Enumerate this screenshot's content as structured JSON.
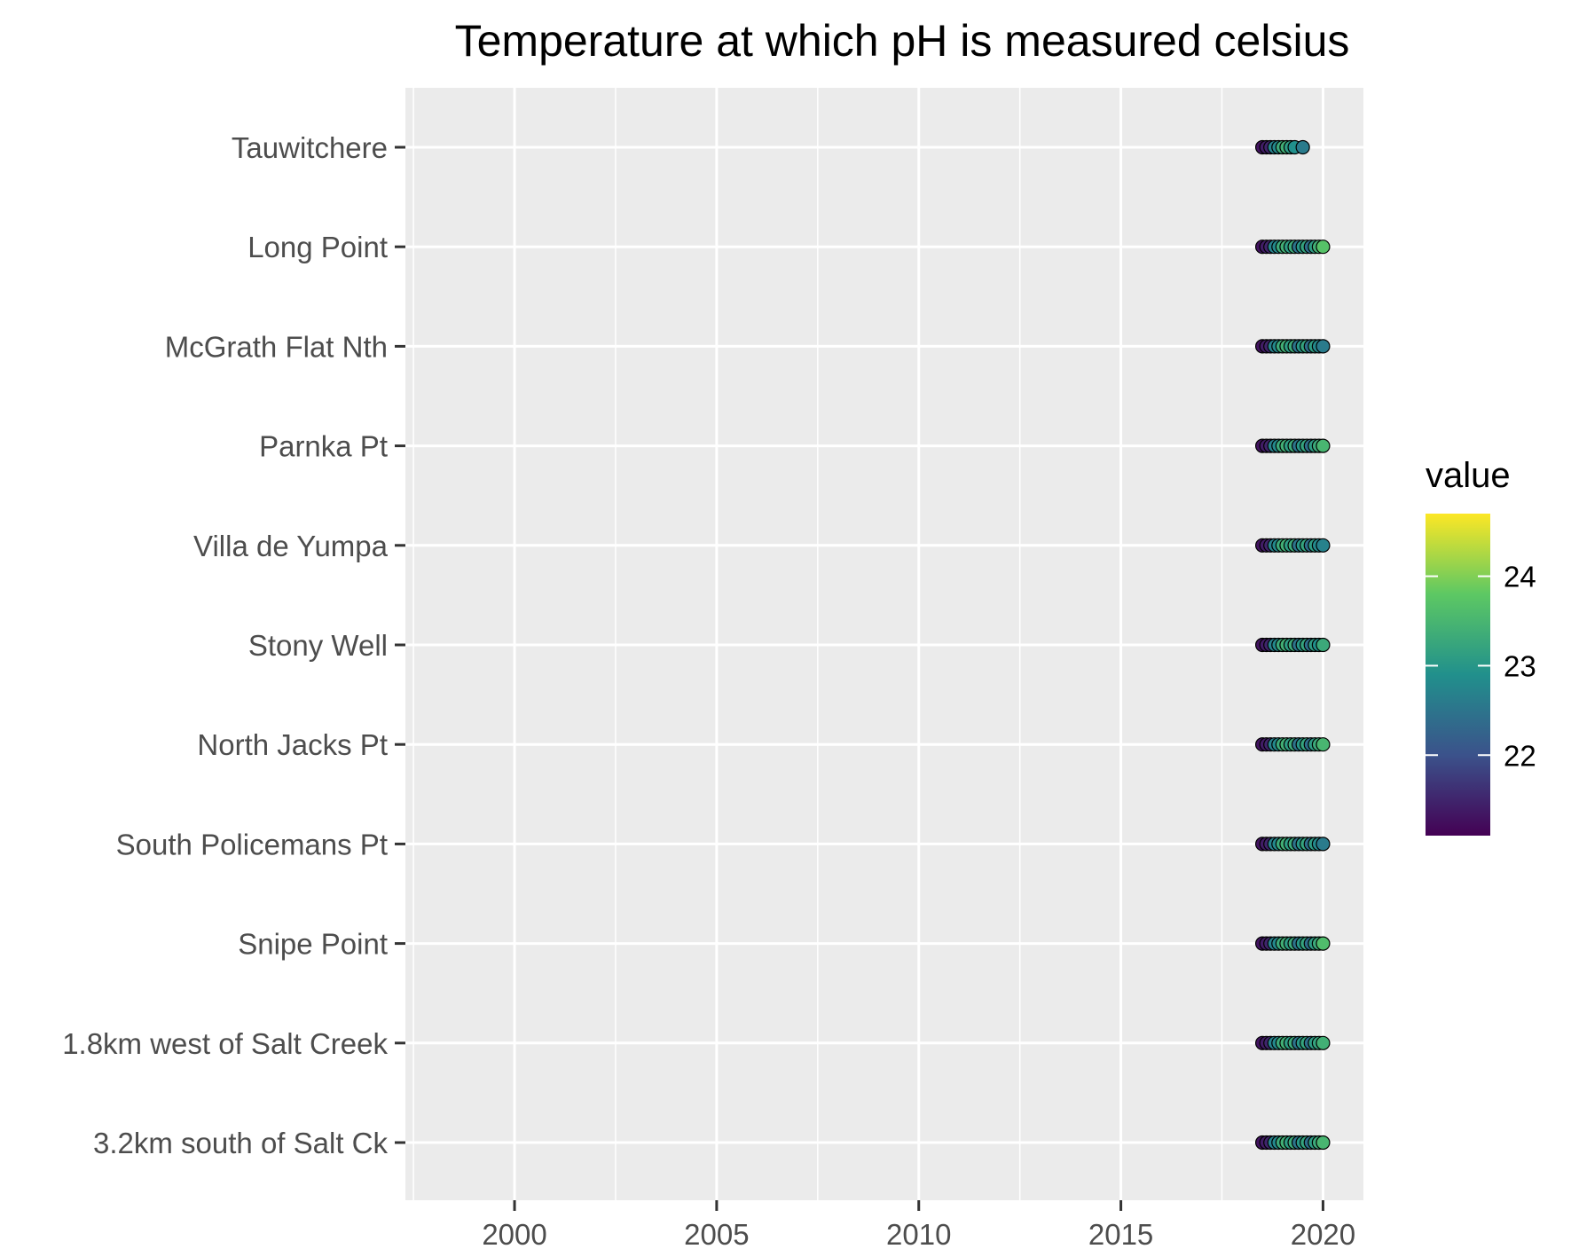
{
  "chart_data": {
    "type": "scatter",
    "title": "Temperature at which pH is measured celsius",
    "xlabel": "",
    "ylabel": "",
    "xlim": [
      1997.3,
      2021.0
    ],
    "x_ticks": [
      2000,
      2005,
      2010,
      2015,
      2020
    ],
    "x_tick_labels": [
      "2000",
      "2005",
      "2010",
      "2015",
      "2020"
    ],
    "categories": [
      "Tauwitchere",
      "Long Point",
      "McGrath Flat Nth",
      "Parnka Pt",
      "Villa de Yumpa",
      "Stony Well",
      "North Jacks Pt",
      "South Policemans Pt",
      "Snipe Point",
      "1.8km west of Salt Creek",
      "3.2km south of Salt Ck"
    ],
    "series": [
      {
        "category": "Tauwitchere",
        "x": [
          2018.5,
          2018.6,
          2018.7,
          2018.8,
          2018.9,
          2019.0,
          2019.1,
          2019.2,
          2019.3,
          2019.5
        ],
        "value": [
          21.3,
          21.4,
          21.5,
          22.7,
          22.8,
          23.3,
          23.4,
          23.1,
          22.9,
          22.6
        ]
      },
      {
        "category": "Long Point",
        "x": [
          2018.5,
          2018.6,
          2018.7,
          2018.8,
          2018.9,
          2019.0,
          2019.1,
          2019.2,
          2019.3,
          2019.4,
          2019.5,
          2019.6,
          2019.7,
          2019.8,
          2019.9,
          2020.0
        ],
        "value": [
          21.3,
          21.4,
          21.5,
          22.7,
          22.8,
          23.3,
          23.4,
          23.1,
          23.3,
          22.5,
          23.0,
          23.2,
          22.4,
          23.1,
          23.4,
          23.7
        ]
      },
      {
        "category": "McGrath Flat Nth",
        "x": [
          2018.5,
          2018.6,
          2018.7,
          2018.8,
          2018.9,
          2019.0,
          2019.1,
          2019.2,
          2019.3,
          2019.4,
          2019.5,
          2019.6,
          2019.7,
          2019.8,
          2019.9,
          2020.0
        ],
        "value": [
          21.3,
          21.4,
          21.5,
          22.7,
          22.8,
          23.3,
          23.4,
          23.1,
          23.3,
          22.5,
          23.0,
          23.2,
          22.4,
          23.1,
          22.8,
          22.6
        ]
      },
      {
        "category": "Parnka Pt",
        "x": [
          2018.5,
          2018.6,
          2018.7,
          2018.8,
          2018.9,
          2019.0,
          2019.1,
          2019.2,
          2019.3,
          2019.4,
          2019.5,
          2019.6,
          2019.7,
          2019.8,
          2019.9,
          2020.0
        ],
        "value": [
          21.3,
          21.4,
          21.5,
          22.7,
          22.8,
          23.3,
          23.4,
          23.1,
          23.3,
          22.5,
          23.0,
          23.2,
          22.4,
          23.1,
          23.3,
          23.5
        ]
      },
      {
        "category": "Villa de Yumpa",
        "x": [
          2018.5,
          2018.6,
          2018.7,
          2018.8,
          2018.9,
          2019.0,
          2019.1,
          2019.2,
          2019.3,
          2019.4,
          2019.5,
          2019.6,
          2019.7,
          2019.8,
          2019.9,
          2020.0
        ],
        "value": [
          21.3,
          21.4,
          21.5,
          22.7,
          22.8,
          23.3,
          23.4,
          23.1,
          23.3,
          22.5,
          23.0,
          23.2,
          22.4,
          23.1,
          22.8,
          22.7
        ]
      },
      {
        "category": "Stony Well",
        "x": [
          2018.5,
          2018.6,
          2018.7,
          2018.8,
          2018.9,
          2019.0,
          2019.1,
          2019.2,
          2019.3,
          2019.4,
          2019.5,
          2019.6,
          2019.7,
          2019.8,
          2019.9,
          2020.0
        ],
        "value": [
          21.3,
          21.4,
          21.5,
          22.7,
          22.8,
          23.3,
          23.4,
          23.1,
          23.3,
          22.5,
          23.0,
          23.2,
          22.4,
          23.1,
          22.9,
          23.3
        ]
      },
      {
        "category": "North Jacks Pt",
        "x": [
          2018.5,
          2018.6,
          2018.7,
          2018.8,
          2018.9,
          2019.0,
          2019.1,
          2019.2,
          2019.3,
          2019.4,
          2019.5,
          2019.6,
          2019.7,
          2019.8,
          2019.9,
          2020.0
        ],
        "value": [
          21.3,
          21.4,
          21.5,
          22.7,
          22.8,
          23.3,
          23.4,
          23.1,
          23.3,
          22.5,
          23.0,
          23.2,
          22.4,
          23.1,
          23.3,
          23.5
        ]
      },
      {
        "category": "South Policemans Pt",
        "x": [
          2018.5,
          2018.6,
          2018.7,
          2018.8,
          2018.9,
          2019.0,
          2019.1,
          2019.2,
          2019.3,
          2019.4,
          2019.5,
          2019.6,
          2019.7,
          2019.8,
          2019.9,
          2020.0
        ],
        "value": [
          21.3,
          21.4,
          21.5,
          22.7,
          22.8,
          23.3,
          23.4,
          23.1,
          23.3,
          22.5,
          23.0,
          23.2,
          22.4,
          23.1,
          22.8,
          22.6
        ]
      },
      {
        "category": "Snipe Point",
        "x": [
          2018.5,
          2018.6,
          2018.7,
          2018.8,
          2018.9,
          2019.0,
          2019.1,
          2019.2,
          2019.3,
          2019.4,
          2019.5,
          2019.6,
          2019.7,
          2019.8,
          2019.9,
          2020.0
        ],
        "value": [
          21.3,
          21.4,
          21.5,
          22.7,
          22.8,
          23.3,
          23.4,
          23.1,
          23.3,
          22.5,
          23.0,
          23.2,
          22.4,
          23.1,
          23.3,
          23.6
        ]
      },
      {
        "category": "1.8km west of Salt Creek",
        "x": [
          2018.5,
          2018.6,
          2018.7,
          2018.8,
          2018.9,
          2019.0,
          2019.1,
          2019.2,
          2019.3,
          2019.4,
          2019.5,
          2019.6,
          2019.7,
          2019.8,
          2019.9,
          2020.0
        ],
        "value": [
          21.3,
          21.4,
          21.5,
          22.7,
          22.8,
          23.3,
          23.4,
          23.1,
          23.3,
          22.5,
          23.0,
          23.2,
          22.4,
          23.1,
          23.2,
          23.4
        ]
      },
      {
        "category": "3.2km south of Salt Ck",
        "x": [
          2018.5,
          2018.6,
          2018.7,
          2018.8,
          2018.9,
          2019.0,
          2019.1,
          2019.2,
          2019.3,
          2019.4,
          2019.5,
          2019.6,
          2019.7,
          2019.8,
          2019.9,
          2020.0
        ],
        "value": [
          21.3,
          21.4,
          21.5,
          22.7,
          22.8,
          23.3,
          23.4,
          23.1,
          23.3,
          22.5,
          23.0,
          23.2,
          22.4,
          23.1,
          23.3,
          23.5
        ]
      }
    ],
    "legend": {
      "title": "value",
      "position": "right",
      "type": "colorbar",
      "range": [
        21.1,
        24.7
      ],
      "ticks": [
        22,
        23,
        24
      ],
      "tick_labels": [
        "22",
        "23",
        "24"
      ],
      "colors": [
        "#440154",
        "#3b528b",
        "#21908c",
        "#5dc863",
        "#fde725"
      ]
    },
    "grid": true,
    "panel_background": "#ebebeb",
    "grid_color": "#ffffff",
    "point_outline_color": "#000000"
  }
}
